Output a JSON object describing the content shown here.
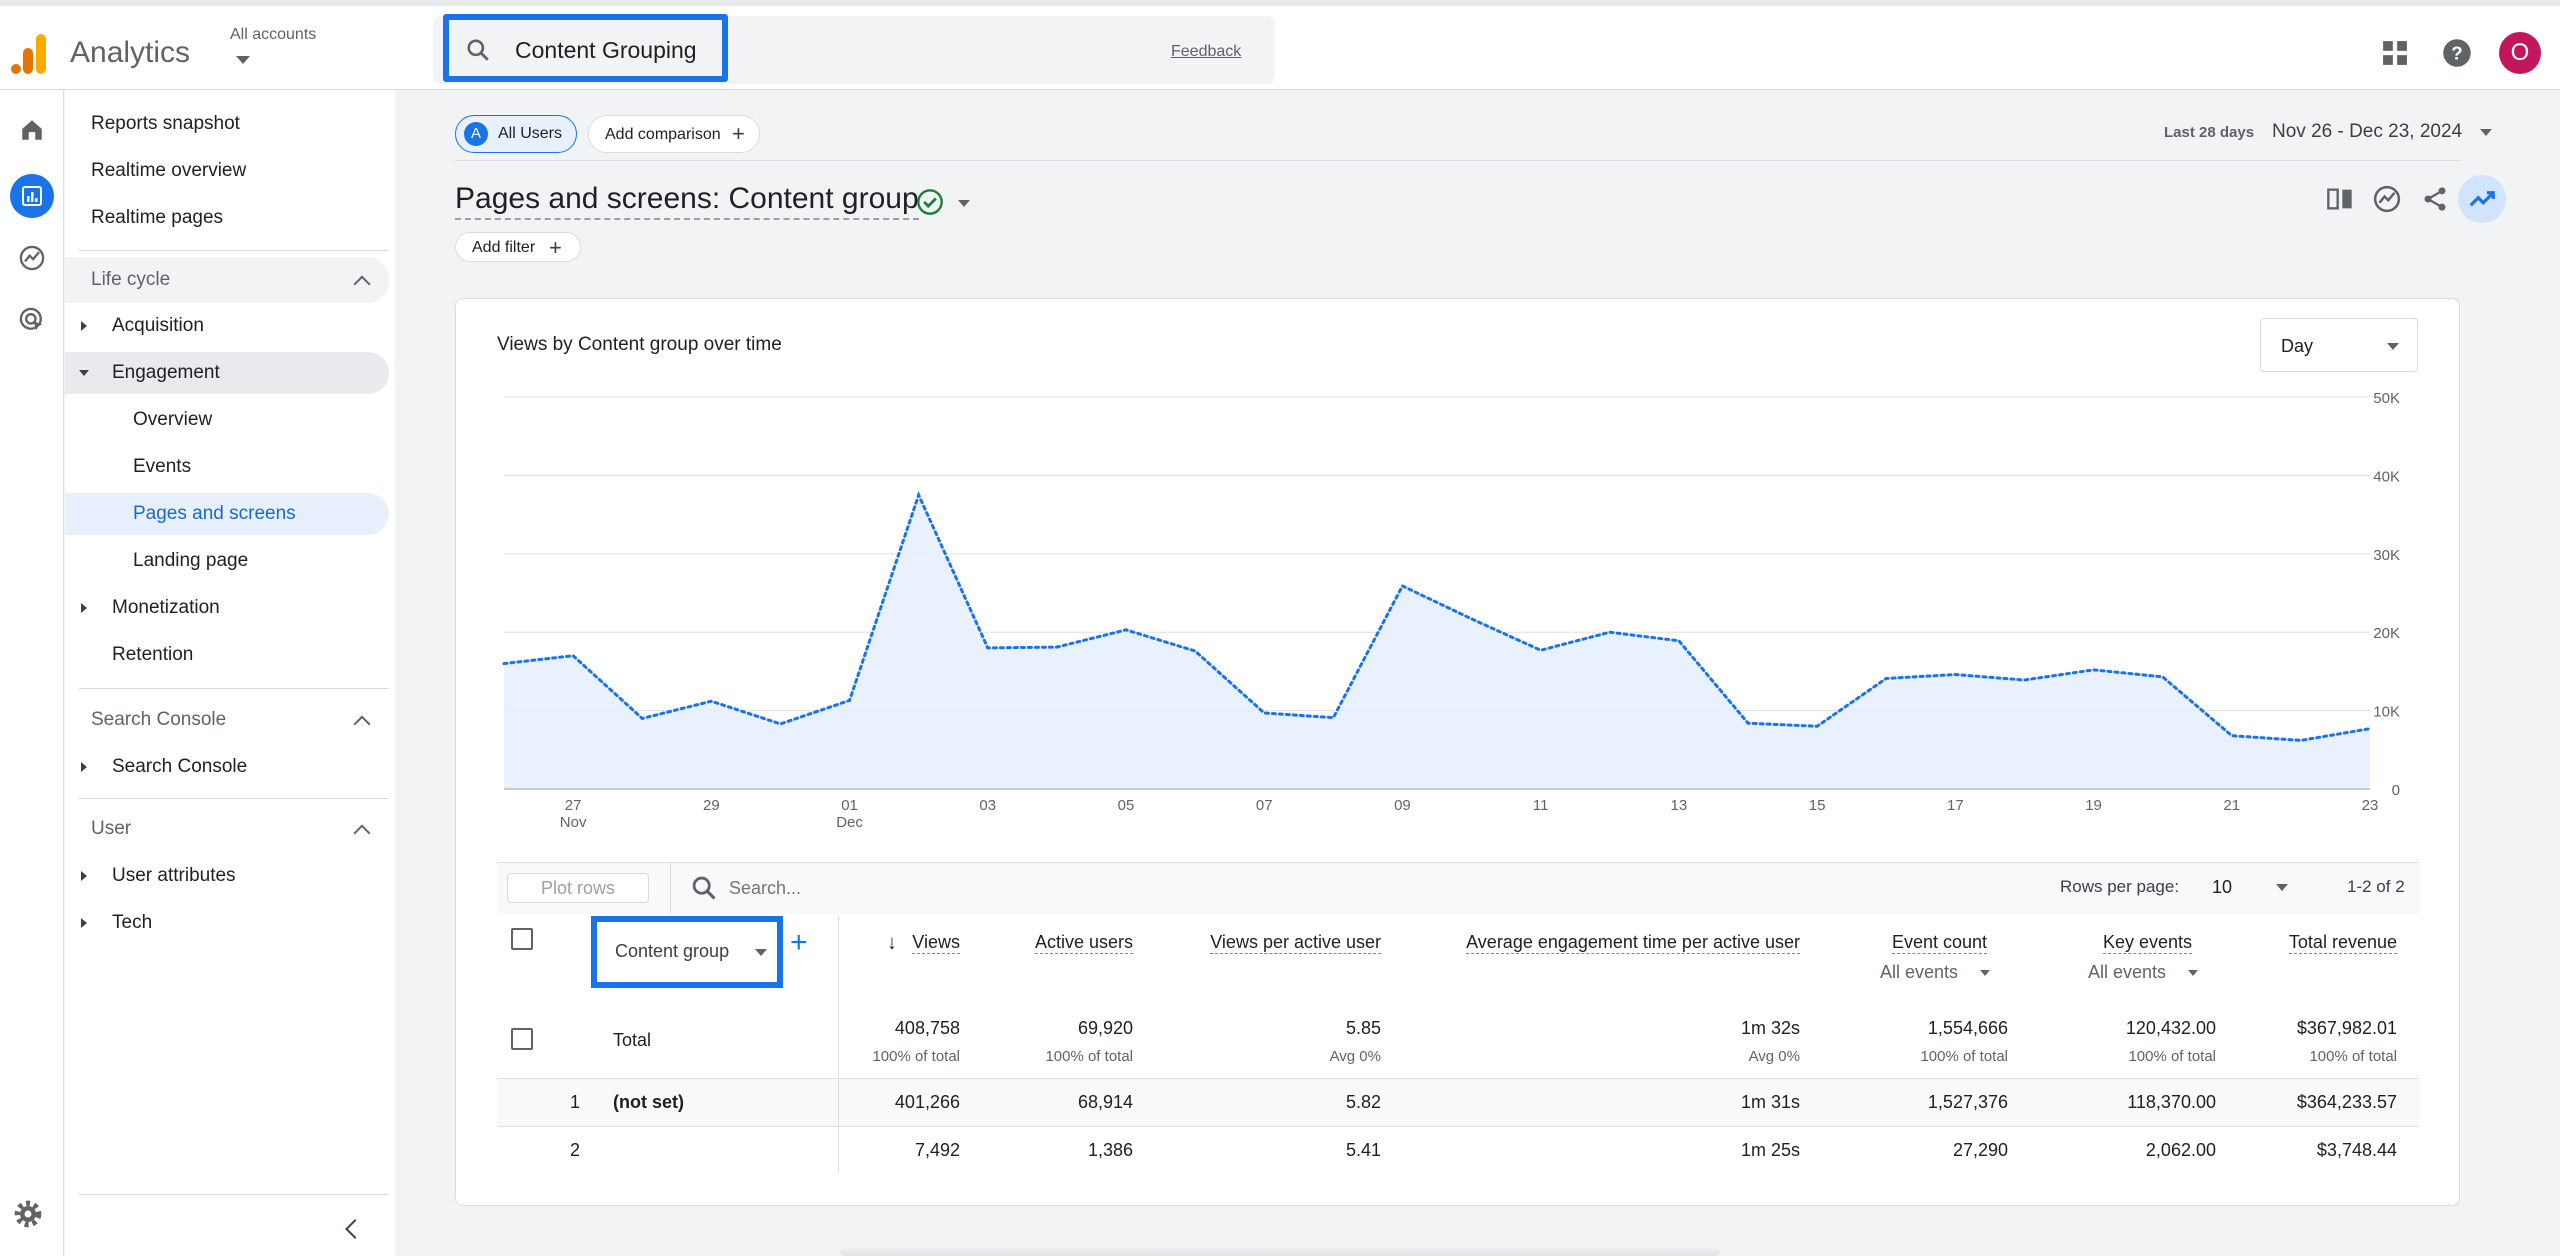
{
  "app": {
    "name": "Analytics",
    "account_label": "All accounts",
    "avatar_initial": "O",
    "brand_color": "#f9ab00",
    "accent": "#1a73e8"
  },
  "search": {
    "query": "Content Grouping",
    "feedback": "Feedback"
  },
  "nav": {
    "reports_snapshot": "Reports snapshot",
    "realtime_overview": "Realtime overview",
    "realtime_pages": "Realtime pages",
    "lifecycle": {
      "label": "Life cycle",
      "acquisition": "Acquisition",
      "engagement": "Engagement",
      "overview": "Overview",
      "events": "Events",
      "pages_and_screens": "Pages and screens",
      "landing_page": "Landing page",
      "monetization": "Monetization",
      "retention": "Retention"
    },
    "search_console": {
      "label": "Search Console",
      "item": "Search Console"
    },
    "user": {
      "label": "User",
      "user_attributes": "User attributes",
      "tech": "Tech"
    }
  },
  "report": {
    "segment_chip": "All Users",
    "segment_letter": "A",
    "add_comparison": "Add comparison",
    "date_label": "Last 28 days",
    "date_range": "Nov 26 - Dec 23, 2024",
    "title": "Pages and screens: Content group",
    "add_filter": "Add filter"
  },
  "chart_data": {
    "type": "line",
    "title": "Views by Content group over time",
    "granularity": "Day",
    "x": [
      "Nov 26",
      "Nov 27",
      "Nov 28",
      "Nov 29",
      "Nov 30",
      "Dec 01",
      "Dec 02",
      "Dec 03",
      "Dec 04",
      "Dec 05",
      "Dec 06",
      "Dec 07",
      "Dec 08",
      "Dec 09",
      "Dec 10",
      "Dec 11",
      "Dec 12",
      "Dec 13",
      "Dec 14",
      "Dec 15",
      "Dec 16",
      "Dec 17",
      "Dec 18",
      "Dec 19",
      "Dec 20",
      "Dec 21",
      "Dec 22",
      "Dec 23"
    ],
    "values": [
      16000,
      17000,
      9000,
      11200,
      8300,
      11300,
      37500,
      18000,
      18100,
      20300,
      17600,
      9700,
      9100,
      25900,
      21700,
      17700,
      20000,
      18900,
      8400,
      8000,
      14100,
      14600,
      13900,
      15200,
      14300,
      6800,
      6200,
      7700
    ],
    "x_tick_labels": [
      {
        "day": "27",
        "month": "Nov"
      },
      {
        "day": "29",
        "month": ""
      },
      {
        "day": "01",
        "month": "Dec"
      },
      {
        "day": "03",
        "month": ""
      },
      {
        "day": "05",
        "month": ""
      },
      {
        "day": "07",
        "month": ""
      },
      {
        "day": "09",
        "month": ""
      },
      {
        "day": "11",
        "month": ""
      },
      {
        "day": "13",
        "month": ""
      },
      {
        "day": "15",
        "month": ""
      },
      {
        "day": "17",
        "month": ""
      },
      {
        "day": "19",
        "month": ""
      },
      {
        "day": "21",
        "month": ""
      },
      {
        "day": "23",
        "month": ""
      }
    ],
    "x_tick_index": [
      1,
      3,
      5,
      7,
      9,
      11,
      13,
      15,
      17,
      19,
      21,
      23,
      25,
      27
    ],
    "y_ticks": [
      "0",
      "10K",
      "20K",
      "30K",
      "40K",
      "50K"
    ],
    "ylim": [
      0,
      50000
    ],
    "line_color": "#1a73e8",
    "fill_color": "#e8f0fe"
  },
  "table": {
    "plot_rows": "Plot rows",
    "search_placeholder": "Search...",
    "rows_per_page_label": "Rows per page:",
    "rows_per_page": "10",
    "pagination": "1-2 of 2",
    "dimension": "Content group",
    "columns": {
      "views": "Views",
      "active_users": "Active users",
      "views_per_user": "Views per active user",
      "avg_engagement": "Average engagement time per active user",
      "event_count": "Event count",
      "event_count_filter": "All events",
      "key_events": "Key events",
      "key_events_filter": "All events",
      "total_revenue": "Total revenue"
    },
    "total": {
      "label": "Total",
      "views": "408,758",
      "views_sub": "100% of total",
      "active_users": "69,920",
      "active_users_sub": "100% of total",
      "views_per_user": "5.85",
      "views_per_user_sub": "Avg 0%",
      "avg_engagement": "1m 32s",
      "avg_engagement_sub": "Avg 0%",
      "event_count": "1,554,666",
      "event_count_sub": "100% of total",
      "key_events": "120,432.00",
      "key_events_sub": "100% of total",
      "total_revenue": "$367,982.01",
      "total_revenue_sub": "100% of total"
    },
    "rows": [
      {
        "index": "1",
        "dimension": "(not set)",
        "views": "401,266",
        "active_users": "68,914",
        "views_per_user": "5.82",
        "avg_engagement": "1m 31s",
        "event_count": "1,527,376",
        "key_events": "118,370.00",
        "total_revenue": "$364,233.57"
      },
      {
        "index": "2",
        "dimension": "",
        "views": "7,492",
        "active_users": "1,386",
        "views_per_user": "5.41",
        "avg_engagement": "1m 25s",
        "event_count": "27,290",
        "key_events": "2,062.00",
        "total_revenue": "$3,748.44"
      }
    ]
  }
}
